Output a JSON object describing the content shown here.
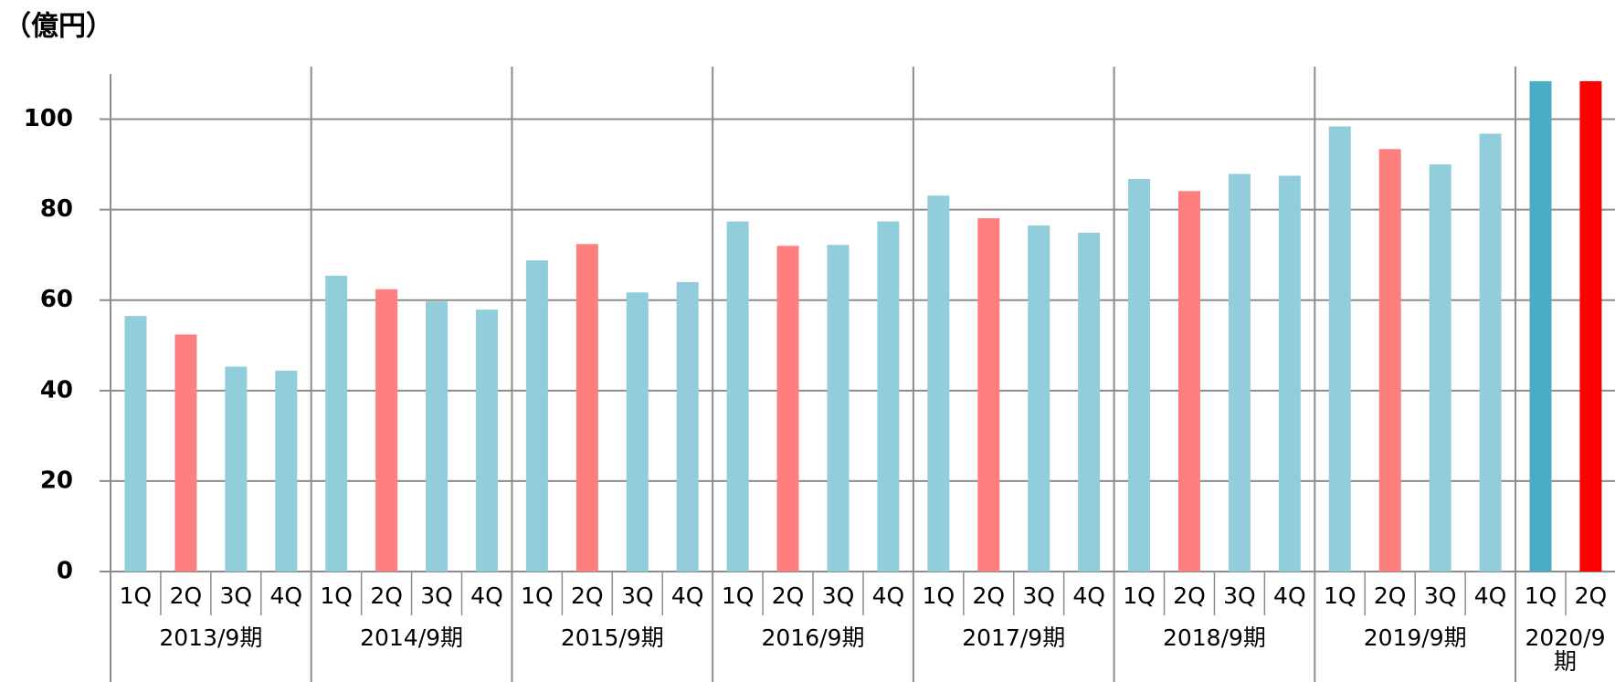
{
  "chart_data": {
    "type": "bar",
    "title": "（億円）",
    "ylim": [
      0,
      110
    ],
    "yticks": [
      0,
      20,
      40,
      60,
      80,
      100
    ],
    "grid": true,
    "groups": [
      {
        "label": "2013/9期",
        "categories": [
          "1Q",
          "2Q",
          "3Q",
          "4Q"
        ],
        "values": [
          56.5,
          52.4,
          45.3,
          44.4
        ],
        "colors": [
          "#92cddc",
          "#ff7f7f",
          "#92cddc",
          "#92cddc"
        ]
      },
      {
        "label": "2014/9期",
        "categories": [
          "1Q",
          "2Q",
          "3Q",
          "4Q"
        ],
        "values": [
          65.4,
          62.4,
          59.7,
          57.9
        ],
        "colors": [
          "#92cddc",
          "#ff7f7f",
          "#92cddc",
          "#92cddc"
        ]
      },
      {
        "label": "2015/9期",
        "categories": [
          "1Q",
          "2Q",
          "3Q",
          "4Q"
        ],
        "values": [
          68.8,
          72.4,
          61.7,
          64.0
        ],
        "colors": [
          "#92cddc",
          "#ff7f7f",
          "#92cddc",
          "#92cddc"
        ]
      },
      {
        "label": "2016/9期",
        "categories": [
          "1Q",
          "2Q",
          "3Q",
          "4Q"
        ],
        "values": [
          77.4,
          72.0,
          72.2,
          77.4
        ],
        "colors": [
          "#92cddc",
          "#ff7f7f",
          "#92cddc",
          "#92cddc"
        ]
      },
      {
        "label": "2017/9期",
        "categories": [
          "1Q",
          "2Q",
          "3Q",
          "4Q"
        ],
        "values": [
          83.1,
          78.1,
          76.5,
          74.9
        ],
        "colors": [
          "#92cddc",
          "#ff7f7f",
          "#92cddc",
          "#92cddc"
        ]
      },
      {
        "label": "2018/9期",
        "categories": [
          "1Q",
          "2Q",
          "3Q",
          "4Q"
        ],
        "values": [
          86.8,
          84.1,
          87.9,
          87.5
        ],
        "colors": [
          "#92cddc",
          "#ff7f7f",
          "#92cddc",
          "#92cddc"
        ]
      },
      {
        "label": "2019/9期",
        "categories": [
          "1Q",
          "2Q",
          "3Q",
          "4Q"
        ],
        "values": [
          98.4,
          93.4,
          90.0,
          96.8
        ],
        "colors": [
          "#92cddc",
          "#ff7f7f",
          "#92cddc",
          "#92cddc"
        ]
      },
      {
        "label": "2020/9期",
        "categories": [
          "1Q",
          "2Q"
        ],
        "values": [
          108.4,
          108.4
        ],
        "colors": [
          "#4bacc6",
          "#ff0000"
        ]
      }
    ]
  }
}
